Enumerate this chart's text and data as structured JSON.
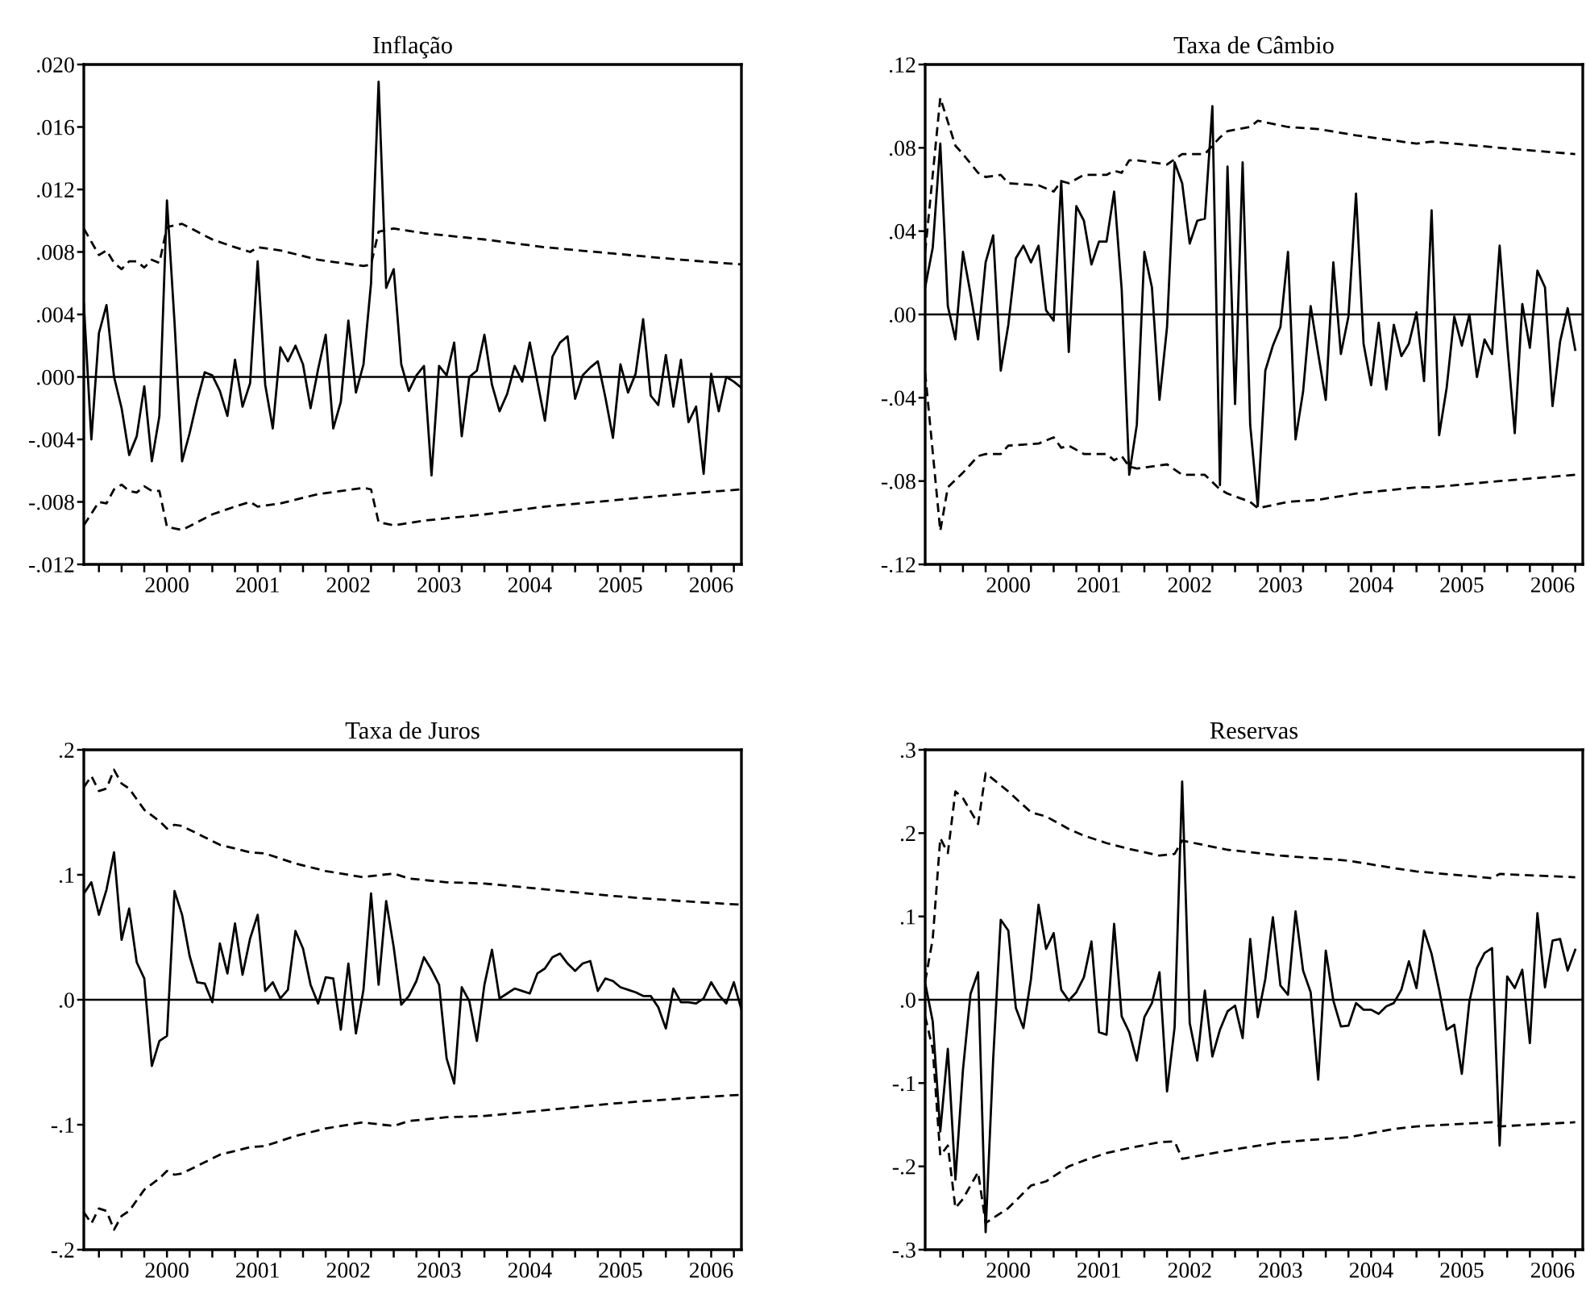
{
  "chart_data": [
    {
      "type": "line",
      "title": "Inflação",
      "x": [
        "1999-08",
        "1999-09",
        "1999-10",
        "1999-11",
        "1999-12",
        "2000-01",
        "2000-02",
        "2000-03",
        "2000-04",
        "2000-05",
        "2000-06",
        "2000-07",
        "2000-08",
        "2000-09",
        "2000-10",
        "2000-11",
        "2000-12",
        "2001-01",
        "2001-02",
        "2001-03",
        "2001-04",
        "2001-05",
        "2001-06",
        "2001-07",
        "2001-08",
        "2001-09",
        "2001-10",
        "2001-11",
        "2001-12",
        "2002-01",
        "2002-02",
        "2002-03",
        "2002-04",
        "2002-05",
        "2002-06",
        "2002-07",
        "2002-08",
        "2002-09",
        "2002-10",
        "2002-11",
        "2002-12",
        "2003-01",
        "2003-02",
        "2003-03",
        "2003-04",
        "2003-05",
        "2003-06",
        "2003-07",
        "2003-08",
        "2003-09",
        "2003-10",
        "2003-11",
        "2003-12",
        "2004-01",
        "2004-02",
        "2004-03",
        "2004-04",
        "2004-05",
        "2004-06",
        "2004-07",
        "2004-08",
        "2004-09",
        "2004-10",
        "2004-11",
        "2004-12",
        "2005-01",
        "2005-02",
        "2005-03",
        "2005-04",
        "2005-05",
        "2005-06",
        "2005-07",
        "2005-08",
        "2005-09",
        "2005-10",
        "2005-11",
        "2005-12",
        "2006-01",
        "2006-02",
        "2006-03",
        "2006-04",
        "2006-05",
        "2006-06",
        "2006-07",
        "2006-08",
        "2006-09",
        "2006-10",
        "2006-11"
      ],
      "xlim": [
        "1999-08",
        "2006-11"
      ],
      "xticks": [
        {
          "value": "1999-10",
          "label": null
        },
        {
          "value": "2000-01",
          "label": null
        },
        {
          "value": "2000-04",
          "label": null
        },
        {
          "value": "2000-07",
          "label": "2000"
        },
        {
          "value": "2000-10",
          "label": null
        },
        {
          "value": "2001-01",
          "label": null
        },
        {
          "value": "2001-04",
          "label": null
        },
        {
          "value": "2001-07",
          "label": "2001"
        },
        {
          "value": "2001-10",
          "label": null
        },
        {
          "value": "2002-01",
          "label": null
        },
        {
          "value": "2002-04",
          "label": null
        },
        {
          "value": "2002-07",
          "label": "2002"
        },
        {
          "value": "2002-10",
          "label": null
        },
        {
          "value": "2003-01",
          "label": null
        },
        {
          "value": "2003-04",
          "label": null
        },
        {
          "value": "2003-07",
          "label": "2003"
        },
        {
          "value": "2003-10",
          "label": null
        },
        {
          "value": "2004-01",
          "label": null
        },
        {
          "value": "2004-04",
          "label": null
        },
        {
          "value": "2004-07",
          "label": "2004"
        },
        {
          "value": "2004-10",
          "label": null
        },
        {
          "value": "2005-01",
          "label": null
        },
        {
          "value": "2005-04",
          "label": null
        },
        {
          "value": "2005-07",
          "label": "2005"
        },
        {
          "value": "2005-10",
          "label": null
        },
        {
          "value": "2006-01",
          "label": null
        },
        {
          "value": "2006-04",
          "label": null
        },
        {
          "value": "2006-07",
          "label": "2006"
        },
        {
          "value": "2006-10",
          "label": null
        }
      ],
      "ylim": [
        -0.012,
        0.02
      ],
      "yticks": [
        {
          "value": -0.012,
          "label": "-.012"
        },
        {
          "value": -0.008,
          "label": "-.008"
        },
        {
          "value": -0.004,
          "label": "-.004"
        },
        {
          "value": 0,
          "label": ".000"
        },
        {
          "value": 0.004,
          "label": ".004"
        },
        {
          "value": 0.008,
          "label": ".008"
        },
        {
          "value": 0.012,
          "label": ".012"
        },
        {
          "value": 0.016,
          "label": ".016"
        },
        {
          "value": 0.02,
          "label": ".020"
        }
      ],
      "ref_lines": [
        {
          "axis": "y",
          "value": 0,
          "color": "#000000"
        }
      ],
      "series": [
        {
          "color": "#000000",
          "line_style": "solid",
          "values": [
            0.0047,
            -0.004,
            0.0028,
            0.0046,
            0.0,
            -0.002,
            -0.005,
            -0.0038,
            -0.0006,
            -0.0054,
            -0.0025,
            0.0113,
            0.0035,
            -0.0054,
            -0.0036,
            -0.0015,
            0.0003,
            0.0001,
            -0.0009,
            -0.0025,
            0.0011,
            -0.0019,
            -0.0004,
            0.0074,
            -0.0005,
            -0.0033,
            0.0019,
            0.001,
            0.002,
            0.0008,
            -0.002,
            0.0005,
            0.0027,
            -0.0033,
            -0.0016,
            0.0036,
            -0.001,
            0.0008,
            0.006,
            0.0189,
            0.0057,
            0.0069,
            0.0008,
            -0.0009,
            0.0001,
            0.0007,
            -0.0063,
            0.0007,
            0.0001,
            0.0022,
            -0.0038,
            0.0,
            0.0004,
            0.0027,
            -0.0005,
            -0.0022,
            -0.0011,
            0.0007,
            -0.0003,
            0.0022,
            -0.0003,
            -0.0028,
            0.0013,
            0.0022,
            0.0026,
            -0.0014,
            0.0001,
            0.0006,
            0.001,
            -0.0013,
            -0.0039,
            0.0008,
            -0.001,
            0.0002,
            0.0037,
            -0.0012,
            -0.0018,
            0.0014,
            -0.0019,
            0.0011,
            -0.0029,
            -0.0019,
            -0.0062,
            0.0002,
            -0.0022,
            0.0,
            -0.0003,
            -0.0007
          ]
        },
        {
          "color": "#000000",
          "line_style": "dashed",
          "x": [
            "1999-08",
            "1999-10",
            "1999-11",
            "1999-12",
            "2000-01",
            "2000-02",
            "2000-03",
            "2000-04",
            "2000-05",
            "2000-06",
            "2000-07",
            "2000-09",
            "2000-11",
            "2001-01",
            "2001-04",
            "2001-06",
            "2001-07",
            "2001-10",
            "2002-03",
            "2002-09",
            "2002-10",
            "2002-11",
            "2003-01",
            "2003-05",
            "2004-01",
            "2004-09",
            "2005-06",
            "2006-03",
            "2006-11"
          ],
          "values": [
            0.0095,
            0.0078,
            0.0081,
            0.0073,
            0.0069,
            0.0074,
            0.0074,
            0.007,
            0.0075,
            0.0073,
            0.0096,
            0.0098,
            0.0093,
            0.0088,
            0.0083,
            0.008,
            0.0083,
            0.0081,
            0.0075,
            0.0071,
            0.0072,
            0.0093,
            0.0095,
            0.0092,
            0.0088,
            0.0083,
            0.0079,
            0.0075,
            0.0072
          ]
        },
        {
          "color": "#000000",
          "line_style": "dashed",
          "x": [
            "1999-08",
            "1999-10",
            "1999-11",
            "1999-12",
            "2000-01",
            "2000-02",
            "2000-03",
            "2000-04",
            "2000-05",
            "2000-06",
            "2000-07",
            "2000-09",
            "2000-11",
            "2001-01",
            "2001-04",
            "2001-06",
            "2001-07",
            "2001-10",
            "2002-03",
            "2002-09",
            "2002-10",
            "2002-11",
            "2003-01",
            "2003-05",
            "2004-01",
            "2004-09",
            "2005-06",
            "2006-03",
            "2006-11"
          ],
          "values": [
            -0.0095,
            -0.008,
            -0.0081,
            -0.0072,
            -0.0069,
            -0.0073,
            -0.0074,
            -0.007,
            -0.0073,
            -0.0073,
            -0.0096,
            -0.0098,
            -0.0093,
            -0.0088,
            -0.0083,
            -0.008,
            -0.0083,
            -0.0081,
            -0.0075,
            -0.0071,
            -0.0072,
            -0.0093,
            -0.0095,
            -0.0092,
            -0.0088,
            -0.0083,
            -0.0079,
            -0.0075,
            -0.0072
          ]
        }
      ]
    },
    {
      "type": "line",
      "title": "Taxa de Câmbio",
      "x": [
        "1999-08",
        "1999-09",
        "1999-10",
        "1999-11",
        "1999-12",
        "2000-01",
        "2000-02",
        "2000-03",
        "2000-04",
        "2000-05",
        "2000-06",
        "2000-07",
        "2000-08",
        "2000-09",
        "2000-10",
        "2000-11",
        "2000-12",
        "2001-01",
        "2001-02",
        "2001-03",
        "2001-04",
        "2001-05",
        "2001-06",
        "2001-07",
        "2001-08",
        "2001-09",
        "2001-10",
        "2001-11",
        "2001-12",
        "2002-01",
        "2002-02",
        "2002-03",
        "2002-04",
        "2002-05",
        "2002-06",
        "2002-07",
        "2002-08",
        "2002-09",
        "2002-10",
        "2002-11",
        "2002-12",
        "2003-01",
        "2003-02",
        "2003-03",
        "2003-04",
        "2003-05",
        "2003-06",
        "2003-07",
        "2003-08",
        "2003-09",
        "2003-10",
        "2003-11",
        "2003-12",
        "2004-01",
        "2004-02",
        "2004-03",
        "2004-04",
        "2004-05",
        "2004-06",
        "2004-07",
        "2004-08",
        "2004-09",
        "2004-10",
        "2004-11",
        "2004-12",
        "2005-01",
        "2005-02",
        "2005-03",
        "2005-04",
        "2005-05",
        "2005-06",
        "2005-07",
        "2005-08",
        "2005-09",
        "2005-10",
        "2005-11",
        "2005-12",
        "2006-01",
        "2006-02",
        "2006-03",
        "2006-04",
        "2006-05",
        "2006-06",
        "2006-07",
        "2006-08",
        "2006-09",
        "2006-10"
      ],
      "xlim": [
        "1999-08",
        "2006-11"
      ],
      "xticks": [
        {
          "value": "1999-10",
          "label": null
        },
        {
          "value": "2000-01",
          "label": null
        },
        {
          "value": "2000-04",
          "label": null
        },
        {
          "value": "2000-07",
          "label": "2000"
        },
        {
          "value": "2000-10",
          "label": null
        },
        {
          "value": "2001-01",
          "label": null
        },
        {
          "value": "2001-04",
          "label": null
        },
        {
          "value": "2001-07",
          "label": "2001"
        },
        {
          "value": "2001-10",
          "label": null
        },
        {
          "value": "2002-01",
          "label": null
        },
        {
          "value": "2002-04",
          "label": null
        },
        {
          "value": "2002-07",
          "label": "2002"
        },
        {
          "value": "2002-10",
          "label": null
        },
        {
          "value": "2003-01",
          "label": null
        },
        {
          "value": "2003-04",
          "label": null
        },
        {
          "value": "2003-07",
          "label": "2003"
        },
        {
          "value": "2003-10",
          "label": null
        },
        {
          "value": "2004-01",
          "label": null
        },
        {
          "value": "2004-04",
          "label": null
        },
        {
          "value": "2004-07",
          "label": "2004"
        },
        {
          "value": "2004-10",
          "label": null
        },
        {
          "value": "2005-01",
          "label": null
        },
        {
          "value": "2005-04",
          "label": null
        },
        {
          "value": "2005-07",
          "label": "2005"
        },
        {
          "value": "2005-10",
          "label": null
        },
        {
          "value": "2006-01",
          "label": null
        },
        {
          "value": "2006-04",
          "label": null
        },
        {
          "value": "2006-07",
          "label": "2006"
        },
        {
          "value": "2006-10",
          "label": null
        }
      ],
      "ylim": [
        -0.12,
        0.12
      ],
      "yticks": [
        {
          "value": -0.12,
          "label": "-.12"
        },
        {
          "value": -0.08,
          "label": "-.08"
        },
        {
          "value": -0.04,
          "label": "-.04"
        },
        {
          "value": 0,
          "label": ".00"
        },
        {
          "value": 0.04,
          "label": ".04"
        },
        {
          "value": 0.08,
          "label": ".08"
        },
        {
          "value": 0.12,
          "label": ".12"
        }
      ],
      "ref_lines": [
        {
          "axis": "y",
          "value": 0,
          "color": "#000000"
        }
      ],
      "series": [
        {
          "color": "#000000",
          "line_style": "solid",
          "values": [
            0.013,
            0.032,
            0.082,
            0.004,
            -0.012,
            0.03,
            0.01,
            -0.012,
            0.025,
            0.038,
            -0.027,
            -0.005,
            0.027,
            0.033,
            0.025,
            0.033,
            0.002,
            -0.003,
            0.064,
            -0.018,
            0.052,
            0.045,
            0.024,
            0.035,
            0.035,
            0.059,
            0.012,
            -0.077,
            -0.053,
            0.03,
            0.013,
            -0.041,
            -0.006,
            0.073,
            0.063,
            0.034,
            0.045,
            0.046,
            0.1,
            -0.082,
            0.071,
            -0.043,
            0.073,
            -0.053,
            -0.092,
            -0.027,
            -0.015,
            -0.006,
            0.03,
            -0.06,
            -0.037,
            0.004,
            -0.019,
            -0.041,
            0.025,
            -0.019,
            -0.001,
            0.058,
            -0.014,
            -0.034,
            -0.004,
            -0.036,
            -0.005,
            -0.02,
            -0.014,
            0.001,
            -0.032,
            0.05,
            -0.058,
            -0.035,
            -0.001,
            -0.015,
            0.0,
            -0.03,
            -0.012,
            -0.019,
            0.033,
            -0.014,
            -0.057,
            0.005,
            -0.016,
            0.021,
            0.013,
            -0.044,
            -0.013,
            0.003,
            -0.017
          ]
        },
        {
          "color": "#000000",
          "line_style": "dashed",
          "x": [
            "1999-08",
            "1999-10",
            "1999-12",
            "2000-01",
            "2000-03",
            "2000-04",
            "2000-06",
            "2000-07",
            "2000-11",
            "2001-01",
            "2001-02",
            "2001-03",
            "2001-05",
            "2001-08",
            "2001-09",
            "2001-10",
            "2001-11",
            "2001-12",
            "2002-04",
            "2002-06",
            "2002-09",
            "2002-11",
            "2002-12",
            "2003-03",
            "2003-04",
            "2003-08",
            "2003-12",
            "2004-05",
            "2005-01",
            "2005-03",
            "2005-12",
            "2006-10"
          ],
          "values": [
            0.03,
            0.104,
            0.081,
            0.077,
            0.068,
            0.066,
            0.067,
            0.063,
            0.062,
            0.059,
            0.064,
            0.063,
            0.067,
            0.067,
            0.069,
            0.068,
            0.074,
            0.074,
            0.072,
            0.077,
            0.077,
            0.085,
            0.088,
            0.09,
            0.093,
            0.09,
            0.089,
            0.086,
            0.082,
            0.083,
            0.08,
            0.077
          ]
        },
        {
          "color": "#000000",
          "line_style": "dashed",
          "x": [
            "1999-08",
            "1999-10",
            "1999-11",
            "2000-01",
            "2000-03",
            "2000-04",
            "2000-06",
            "2000-07",
            "2000-11",
            "2001-01",
            "2001-02",
            "2001-03",
            "2001-05",
            "2001-08",
            "2001-09",
            "2001-10",
            "2001-11",
            "2001-12",
            "2002-04",
            "2002-06",
            "2002-09",
            "2002-11",
            "2002-12",
            "2003-03",
            "2003-04",
            "2003-08",
            "2003-12",
            "2004-05",
            "2005-01",
            "2005-03",
            "2005-12",
            "2006-10"
          ],
          "values": [
            -0.028,
            -0.104,
            -0.083,
            -0.076,
            -0.068,
            -0.067,
            -0.067,
            -0.063,
            -0.062,
            -0.059,
            -0.064,
            -0.063,
            -0.067,
            -0.067,
            -0.07,
            -0.068,
            -0.073,
            -0.074,
            -0.072,
            -0.077,
            -0.077,
            -0.084,
            -0.086,
            -0.09,
            -0.093,
            -0.09,
            -0.089,
            -0.086,
            -0.083,
            -0.083,
            -0.08,
            -0.077
          ]
        }
      ]
    },
    {
      "type": "line",
      "title": "Taxa de Juros",
      "x": [
        "1999-08",
        "1999-09",
        "1999-10",
        "1999-11",
        "1999-12",
        "2000-01",
        "2000-02",
        "2000-03",
        "2000-04",
        "2000-05",
        "2000-06",
        "2000-07",
        "2000-08",
        "2000-09",
        "2000-10",
        "2000-11",
        "2000-12",
        "2001-01",
        "2001-02",
        "2001-03",
        "2001-04",
        "2001-05",
        "2001-06",
        "2001-07",
        "2001-08",
        "2001-09",
        "2001-10",
        "2001-11",
        "2001-12",
        "2002-01",
        "2002-02",
        "2002-03",
        "2002-04",
        "2002-05",
        "2002-06",
        "2002-07",
        "2002-08",
        "2002-09",
        "2002-10",
        "2002-11",
        "2002-12",
        "2003-01",
        "2003-02",
        "2003-03",
        "2003-04",
        "2003-05",
        "2003-06",
        "2003-07",
        "2003-08",
        "2003-09",
        "2003-10",
        "2003-11",
        "2003-12",
        "2004-01",
        "2004-02",
        "2004-03",
        "2004-04",
        "2004-05",
        "2004-06",
        "2004-07",
        "2004-08",
        "2004-09",
        "2004-10",
        "2004-11",
        "2004-12",
        "2005-01",
        "2005-02",
        "2005-03",
        "2005-04",
        "2005-05",
        "2005-06",
        "2005-07",
        "2005-08",
        "2005-09",
        "2005-10",
        "2005-11",
        "2005-12",
        "2006-01",
        "2006-02",
        "2006-03",
        "2006-04",
        "2006-05",
        "2006-06",
        "2006-07",
        "2006-08",
        "2006-09",
        "2006-10",
        "2006-11"
      ],
      "xlim": [
        "1999-08",
        "2006-11"
      ],
      "xticks": [
        {
          "value": "1999-10",
          "label": null
        },
        {
          "value": "2000-01",
          "label": null
        },
        {
          "value": "2000-04",
          "label": null
        },
        {
          "value": "2000-07",
          "label": "2000"
        },
        {
          "value": "2000-10",
          "label": null
        },
        {
          "value": "2001-01",
          "label": null
        },
        {
          "value": "2001-04",
          "label": null
        },
        {
          "value": "2001-07",
          "label": "2001"
        },
        {
          "value": "2001-10",
          "label": null
        },
        {
          "value": "2002-01",
          "label": null
        },
        {
          "value": "2002-04",
          "label": null
        },
        {
          "value": "2002-07",
          "label": "2002"
        },
        {
          "value": "2002-10",
          "label": null
        },
        {
          "value": "2003-01",
          "label": null
        },
        {
          "value": "2003-04",
          "label": null
        },
        {
          "value": "2003-07",
          "label": "2003"
        },
        {
          "value": "2003-10",
          "label": null
        },
        {
          "value": "2004-01",
          "label": null
        },
        {
          "value": "2004-04",
          "label": null
        },
        {
          "value": "2004-07",
          "label": "2004"
        },
        {
          "value": "2004-10",
          "label": null
        },
        {
          "value": "2005-01",
          "label": null
        },
        {
          "value": "2005-04",
          "label": null
        },
        {
          "value": "2005-07",
          "label": "2005"
        },
        {
          "value": "2005-10",
          "label": null
        },
        {
          "value": "2006-01",
          "label": null
        },
        {
          "value": "2006-04",
          "label": null
        },
        {
          "value": "2006-07",
          "label": "2006"
        },
        {
          "value": "2006-10",
          "label": null
        }
      ],
      "ylim": [
        -0.2,
        0.2
      ],
      "yticks": [
        {
          "value": -0.2,
          "label": "-.2"
        },
        {
          "value": -0.1,
          "label": "-.1"
        },
        {
          "value": 0,
          "label": ".0"
        },
        {
          "value": 0.1,
          "label": ".1"
        },
        {
          "value": 0.2,
          "label": ".2"
        }
      ],
      "ref_lines": [
        {
          "axis": "y",
          "value": 0,
          "color": "#000000"
        }
      ],
      "series": [
        {
          "color": "#000000",
          "line_style": "solid",
          "values": [
            0.085,
            0.094,
            0.068,
            0.088,
            0.118,
            0.048,
            0.073,
            0.03,
            0.017,
            -0.053,
            -0.033,
            -0.029,
            0.087,
            0.068,
            0.035,
            0.014,
            0.013,
            -0.002,
            0.045,
            0.021,
            0.061,
            0.02,
            0.049,
            0.068,
            0.007,
            0.014,
            0.001,
            0.008,
            0.055,
            0.041,
            0.012,
            -0.003,
            0.018,
            0.017,
            -0.024,
            0.029,
            -0.027,
            0.008,
            0.085,
            0.012,
            0.079,
            0.042,
            -0.004,
            0.003,
            0.015,
            0.034,
            0.024,
            0.012,
            -0.047,
            -0.067,
            0.01,
            -0.001,
            -0.033,
            0.012,
            0.04,
            0.001,
            0.005,
            0.009,
            0.007,
            0.005,
            0.021,
            0.025,
            0.034,
            0.037,
            0.029,
            0.023,
            0.029,
            0.031,
            0.007,
            0.017,
            0.015,
            0.01,
            0.008,
            0.006,
            0.003,
            0.003,
            -0.006,
            -0.023,
            0.009,
            -0.002,
            -0.002,
            -0.003,
            0.001,
            0.014,
            0.004,
            -0.003,
            0.014,
            -0.008
          ]
        },
        {
          "color": "#000000",
          "line_style": "dashed",
          "x": [
            "1999-08",
            "1999-09",
            "1999-10",
            "1999-11",
            "1999-12",
            "2000-01",
            "2000-02",
            "2000-04",
            "2000-06",
            "2000-07",
            "2000-08",
            "2000-09",
            "2000-12",
            "2001-02",
            "2001-04",
            "2001-06",
            "2001-08",
            "2001-12",
            "2002-04",
            "2002-09",
            "2002-10",
            "2003-01",
            "2003-03",
            "2003-08",
            "2004-01",
            "2004-08",
            "2005-06",
            "2006-03",
            "2006-11"
          ],
          "values": [
            0.17,
            0.179,
            0.167,
            0.169,
            0.184,
            0.173,
            0.169,
            0.152,
            0.143,
            0.137,
            0.14,
            0.139,
            0.13,
            0.124,
            0.121,
            0.118,
            0.117,
            0.109,
            0.103,
            0.098,
            0.099,
            0.101,
            0.097,
            0.094,
            0.093,
            0.089,
            0.083,
            0.079,
            0.076
          ]
        },
        {
          "color": "#000000",
          "line_style": "dashed",
          "x": [
            "1999-08",
            "1999-09",
            "1999-10",
            "1999-11",
            "1999-12",
            "2000-01",
            "2000-02",
            "2000-04",
            "2000-06",
            "2000-07",
            "2000-08",
            "2000-09",
            "2000-12",
            "2001-02",
            "2001-04",
            "2001-06",
            "2001-08",
            "2001-12",
            "2002-04",
            "2002-09",
            "2002-10",
            "2003-01",
            "2003-03",
            "2003-08",
            "2004-01",
            "2004-08",
            "2005-06",
            "2006-03",
            "2006-11"
          ],
          "values": [
            -0.17,
            -0.179,
            -0.167,
            -0.169,
            -0.184,
            -0.173,
            -0.169,
            -0.152,
            -0.143,
            -0.137,
            -0.14,
            -0.139,
            -0.13,
            -0.124,
            -0.121,
            -0.118,
            -0.117,
            -0.109,
            -0.103,
            -0.098,
            -0.099,
            -0.101,
            -0.097,
            -0.094,
            -0.093,
            -0.089,
            -0.083,
            -0.079,
            -0.076
          ]
        }
      ]
    },
    {
      "type": "line",
      "title": "Reservas",
      "x": [
        "1999-08",
        "1999-09",
        "1999-10",
        "1999-11",
        "1999-12",
        "2000-01",
        "2000-02",
        "2000-03",
        "2000-04",
        "2000-05",
        "2000-06",
        "2000-07",
        "2000-08",
        "2000-09",
        "2000-10",
        "2000-11",
        "2000-12",
        "2001-01",
        "2001-02",
        "2001-03",
        "2001-04",
        "2001-05",
        "2001-06",
        "2001-07",
        "2001-08",
        "2001-09",
        "2001-10",
        "2001-11",
        "2001-12",
        "2002-01",
        "2002-02",
        "2002-03",
        "2002-04",
        "2002-05",
        "2002-06",
        "2002-07",
        "2002-08",
        "2002-09",
        "2002-10",
        "2002-11",
        "2002-12",
        "2003-01",
        "2003-02",
        "2003-03",
        "2003-04",
        "2003-05",
        "2003-06",
        "2003-07",
        "2003-08",
        "2003-09",
        "2003-10",
        "2003-11",
        "2003-12",
        "2004-01",
        "2004-02",
        "2004-03",
        "2004-04",
        "2004-05",
        "2004-06",
        "2004-07",
        "2004-08",
        "2004-09",
        "2004-10",
        "2004-11",
        "2004-12",
        "2005-01",
        "2005-02",
        "2005-03",
        "2005-04",
        "2005-05",
        "2005-06",
        "2005-07",
        "2005-08",
        "2005-09",
        "2005-10",
        "2005-11",
        "2005-12",
        "2006-01",
        "2006-02",
        "2006-03",
        "2006-04",
        "2006-05",
        "2006-06",
        "2006-07",
        "2006-08",
        "2006-09",
        "2006-10"
      ],
      "xlim": [
        "1999-08",
        "2006-11"
      ],
      "xticks": [
        {
          "value": "1999-10",
          "label": null
        },
        {
          "value": "2000-01",
          "label": null
        },
        {
          "value": "2000-04",
          "label": null
        },
        {
          "value": "2000-07",
          "label": "2000"
        },
        {
          "value": "2000-10",
          "label": null
        },
        {
          "value": "2001-01",
          "label": null
        },
        {
          "value": "2001-04",
          "label": null
        },
        {
          "value": "2001-07",
          "label": "2001"
        },
        {
          "value": "2001-10",
          "label": null
        },
        {
          "value": "2002-01",
          "label": null
        },
        {
          "value": "2002-04",
          "label": null
        },
        {
          "value": "2002-07",
          "label": "2002"
        },
        {
          "value": "2002-10",
          "label": null
        },
        {
          "value": "2003-01",
          "label": null
        },
        {
          "value": "2003-04",
          "label": null
        },
        {
          "value": "2003-07",
          "label": "2003"
        },
        {
          "value": "2003-10",
          "label": null
        },
        {
          "value": "2004-01",
          "label": null
        },
        {
          "value": "2004-04",
          "label": null
        },
        {
          "value": "2004-07",
          "label": "2004"
        },
        {
          "value": "2004-10",
          "label": null
        },
        {
          "value": "2005-01",
          "label": null
        },
        {
          "value": "2005-04",
          "label": null
        },
        {
          "value": "2005-07",
          "label": "2005"
        },
        {
          "value": "2005-10",
          "label": null
        },
        {
          "value": "2006-01",
          "label": null
        },
        {
          "value": "2006-04",
          "label": null
        },
        {
          "value": "2006-07",
          "label": "2006"
        },
        {
          "value": "2006-10",
          "label": null
        }
      ],
      "ylim": [
        -0.3,
        0.3
      ],
      "yticks": [
        {
          "value": -0.3,
          "label": "-.3"
        },
        {
          "value": -0.2,
          "label": "-.2"
        },
        {
          "value": -0.1,
          "label": "-.1"
        },
        {
          "value": 0,
          "label": ".0"
        },
        {
          "value": 0.1,
          "label": ".1"
        },
        {
          "value": 0.2,
          "label": ".2"
        },
        {
          "value": 0.3,
          "label": ".3"
        }
      ],
      "ref_lines": [
        {
          "axis": "y",
          "value": 0,
          "color": "#000000"
        }
      ],
      "series": [
        {
          "color": "#000000",
          "line_style": "solid",
          "values": [
            0.02,
            -0.026,
            -0.158,
            -0.059,
            -0.216,
            -0.084,
            0.007,
            0.033,
            -0.279,
            -0.071,
            0.096,
            0.083,
            -0.01,
            -0.034,
            0.025,
            0.114,
            0.061,
            0.08,
            0.012,
            -0.001,
            0.009,
            0.027,
            0.07,
            -0.039,
            -0.042,
            0.091,
            -0.02,
            -0.039,
            -0.073,
            -0.021,
            -0.004,
            0.033,
            -0.11,
            -0.033,
            0.262,
            -0.028,
            -0.073,
            0.011,
            -0.068,
            -0.036,
            -0.014,
            -0.007,
            -0.046,
            0.073,
            -0.021,
            0.025,
            0.099,
            0.017,
            0.006,
            0.106,
            0.035,
            0.009,
            -0.096,
            0.059,
            -0.001,
            -0.032,
            -0.031,
            -0.004,
            -0.012,
            -0.012,
            -0.017,
            -0.008,
            -0.004,
            0.012,
            0.046,
            0.014,
            0.083,
            0.055,
            0.012,
            -0.036,
            -0.03,
            -0.089,
            -0.002,
            0.038,
            0.056,
            0.062,
            -0.175,
            0.028,
            0.014,
            0.036,
            -0.052,
            0.104,
            0.015,
            0.071,
            0.073,
            0.035,
            0.06
          ]
        },
        {
          "color": "#000000",
          "line_style": "dashed",
          "x": [
            "1999-08",
            "1999-09",
            "1999-10",
            "1999-11",
            "1999-12",
            "2000-01",
            "2000-03",
            "2000-04",
            "2000-07",
            "2000-10",
            "2000-12",
            "2001-03",
            "2001-05",
            "2001-08",
            "2001-11",
            "2002-03",
            "2002-05",
            "2002-06",
            "2002-12",
            "2003-07",
            "2004-04",
            "2004-10",
            "2005-01",
            "2005-11",
            "2005-12",
            "2006-10"
          ],
          "values": [
            0.022,
            0.073,
            0.194,
            0.176,
            0.25,
            0.242,
            0.211,
            0.272,
            0.25,
            0.225,
            0.22,
            0.205,
            0.197,
            0.188,
            0.181,
            0.173,
            0.175,
            0.191,
            0.18,
            0.173,
            0.167,
            0.158,
            0.154,
            0.146,
            0.151,
            0.147
          ]
        },
        {
          "color": "#000000",
          "line_style": "dashed",
          "x": [
            "1999-08",
            "1999-09",
            "1999-10",
            "1999-11",
            "1999-12",
            "2000-01",
            "2000-03",
            "2000-04",
            "2000-07",
            "2000-10",
            "2000-12",
            "2001-03",
            "2001-05",
            "2001-08",
            "2001-11",
            "2002-03",
            "2002-05",
            "2002-06",
            "2002-12",
            "2003-07",
            "2004-04",
            "2004-10",
            "2005-01",
            "2005-11",
            "2005-12",
            "2006-10"
          ],
          "values": [
            -0.02,
            -0.059,
            -0.187,
            -0.175,
            -0.25,
            -0.239,
            -0.207,
            -0.268,
            -0.25,
            -0.223,
            -0.218,
            -0.2,
            -0.193,
            -0.184,
            -0.178,
            -0.171,
            -0.17,
            -0.191,
            -0.181,
            -0.171,
            -0.165,
            -0.155,
            -0.152,
            -0.147,
            -0.152,
            -0.147
          ]
        }
      ]
    }
  ]
}
